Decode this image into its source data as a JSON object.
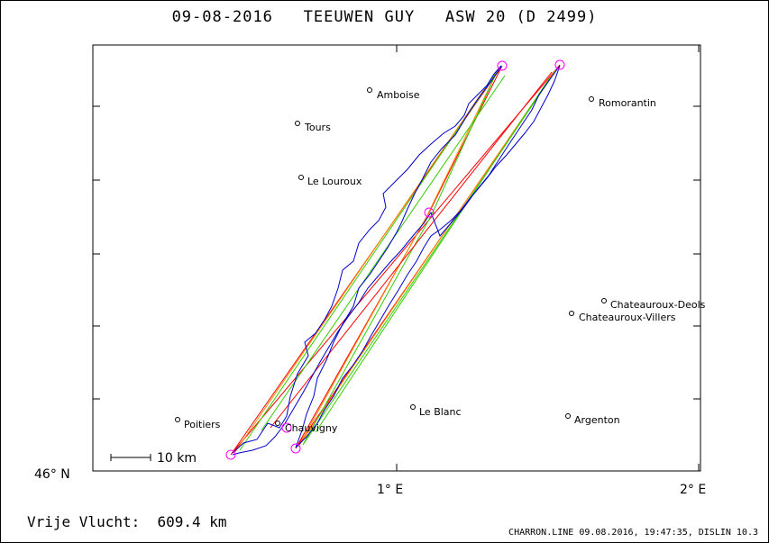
{
  "title": "09-08-2016   TEEUWEN GUY   ASW 20 (D 2499)",
  "axes": {
    "lat_label": "46° N",
    "lon_label_1": "1° E",
    "lon_label_2": "2° E"
  },
  "scale_label": "10 km",
  "places": {
    "amboise": "Amboise",
    "romorantin": "Romorantin",
    "tours": "Tours",
    "le_louroux": "Le Louroux",
    "chateauroux_deols": "Chateauroux-Deols",
    "chateauroux_villers": "Chateauroux-Villers",
    "poitiers": "Poitiers",
    "chauvigny": "Chauvigny",
    "le_blanc": "Le Blanc",
    "argenton": "Argenton"
  },
  "distance_label": "Vrije Vlucht:  609.4 km",
  "footer": "CHARRON.LINE 09.08.2016, 19:47:35, DISLIN 10.3",
  "colors": {
    "track": "#0000cc",
    "leg_red": "#ff0000",
    "leg_green": "#33cc00",
    "leg_orange": "#ff8800",
    "turnpoint": "#ff00ff"
  }
}
